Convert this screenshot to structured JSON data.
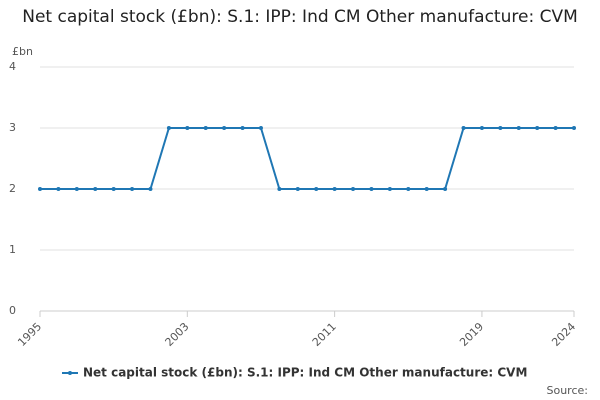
{
  "chart_data": {
    "type": "line",
    "title": "Net capital stock (£bn): S.1: IPP: Ind CM Other manufacture: CVM",
    "y_axis_label": "£bn",
    "x": [
      1995,
      1996,
      1997,
      1998,
      1999,
      2000,
      2001,
      2002,
      2003,
      2004,
      2005,
      2006,
      2007,
      2008,
      2009,
      2010,
      2011,
      2012,
      2013,
      2014,
      2015,
      2016,
      2017,
      2018,
      2019,
      2020,
      2021,
      2022,
      2023,
      2024
    ],
    "series": [
      {
        "name": "Net capital stock (£bn): S.1: IPP: Ind CM Other manufacture: CVM",
        "color": "#1f77b4",
        "values": [
          2,
          2,
          2,
          2,
          2,
          2,
          2,
          3,
          3,
          3,
          3,
          3,
          3,
          2,
          2,
          2,
          2,
          2,
          2,
          2,
          2,
          2,
          2,
          3,
          3,
          3,
          3,
          3,
          3,
          3
        ]
      }
    ],
    "xlim": [
      1995,
      2024
    ],
    "xticks": [
      1995,
      2003,
      2011,
      2019,
      2024
    ],
    "ylim": [
      0,
      4
    ],
    "yticks": [
      0,
      1,
      2,
      3,
      4
    ],
    "grid": true,
    "source": "Source:"
  }
}
